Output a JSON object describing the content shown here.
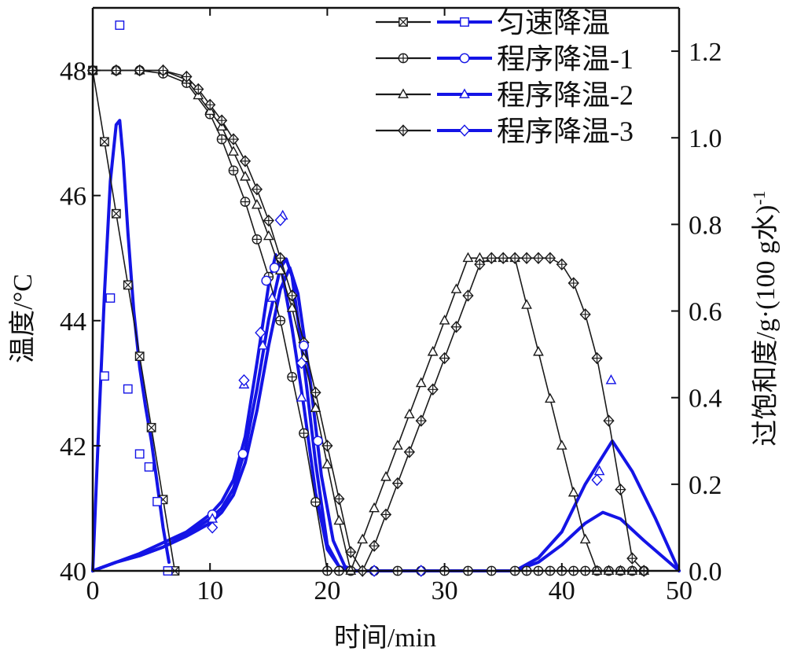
{
  "chart_data": {
    "type": "line",
    "xlabel": "时间/min",
    "ylabel_left": "温度/°C",
    "ylabel_right_main": "过饱和度/g·(100 g水)",
    "ylabel_right_sup": "-1",
    "xlim": [
      0,
      50
    ],
    "ylim_left": [
      40,
      49
    ],
    "ylim_right": [
      0,
      1.3
    ],
    "xticks": [
      0,
      10,
      20,
      30,
      40,
      50
    ],
    "yticks_left": [
      40,
      42,
      44,
      46,
      48
    ],
    "yticks_right": [
      0.0,
      0.2,
      0.4,
      0.6,
      0.8,
      1.0,
      1.2
    ],
    "yticks_right_labels": [
      "0.0",
      "0.2",
      "0.4",
      "0.6",
      "0.8",
      "1.0",
      "1.2"
    ],
    "grid": false,
    "legend_position": "top-right",
    "legend": [
      "匀速降温",
      "程序降温-1",
      "程序降温-2",
      "程序降温-3"
    ],
    "colors": {
      "temperature": "#1a1a1a",
      "supersaturation": "#1414e6"
    },
    "temperature_series": [
      {
        "name": "匀速降温",
        "marker": "square-x",
        "x": [
          0,
          1,
          2,
          3,
          4,
          5,
          6,
          7
        ],
        "y": [
          48,
          46.86,
          45.71,
          44.57,
          43.43,
          42.29,
          41.14,
          40
        ]
      },
      {
        "name": "程序降温-1",
        "marker": "circle-plus",
        "x": [
          0,
          2,
          4,
          6,
          8,
          10,
          11,
          12,
          13,
          14,
          15,
          16,
          17,
          18,
          19,
          20,
          21,
          22,
          24,
          26,
          28,
          30,
          32,
          34,
          36,
          37,
          38,
          39,
          40,
          41,
          42,
          43,
          44,
          45,
          46,
          47
        ],
        "y": [
          48,
          48,
          48,
          47.95,
          47.8,
          47.3,
          46.9,
          46.4,
          45.9,
          45.3,
          44.7,
          44.0,
          43.1,
          42.2,
          41.1,
          40,
          40,
          40,
          40,
          40,
          40,
          40,
          40,
          40,
          40,
          40,
          40,
          40,
          40,
          40,
          40,
          40,
          40,
          40,
          40,
          40
        ]
      },
      {
        "name": "程序降温-2",
        "marker": "triangle",
        "x": [
          0,
          2,
          4,
          6,
          8,
          9,
          10,
          11,
          12,
          13,
          14,
          15,
          16,
          17,
          18,
          19,
          20,
          21,
          22,
          23,
          24,
          25,
          26,
          27,
          28,
          29,
          30,
          31,
          32,
          33,
          34,
          35,
          36,
          37,
          38,
          39,
          40,
          41,
          42,
          43,
          44,
          45,
          46,
          47
        ],
        "y": [
          48,
          48,
          48,
          48,
          47.85,
          47.6,
          47.35,
          47.1,
          46.7,
          46.3,
          45.85,
          45.35,
          44.8,
          44.2,
          43.4,
          42.6,
          41.7,
          40.8,
          40,
          40.5,
          41,
          41.5,
          42,
          42.5,
          43,
          43.5,
          44,
          44.5,
          45,
          45,
          45,
          45,
          45,
          44.25,
          43.5,
          42.75,
          42,
          41.25,
          40.5,
          40,
          40,
          40,
          40,
          40
        ]
      },
      {
        "name": "程序降温-3",
        "marker": "diamond-plus",
        "x": [
          0,
          2,
          4,
          6,
          8,
          9,
          10,
          11,
          12,
          13,
          14,
          15,
          16,
          17,
          18,
          19,
          20,
          21,
          22,
          23,
          24,
          25,
          26,
          27,
          28,
          29,
          30,
          31,
          32,
          33,
          34,
          35,
          36,
          37,
          38,
          39,
          40,
          41,
          42,
          43,
          44,
          45,
          46,
          47
        ],
        "y": [
          48,
          48,
          48,
          48,
          47.9,
          47.7,
          47.45,
          47.2,
          46.9,
          46.55,
          46.1,
          45.6,
          45.0,
          44.4,
          43.65,
          42.85,
          42.0,
          41.15,
          40.3,
          40,
          40.4,
          40.9,
          41.4,
          41.9,
          42.4,
          42.9,
          43.4,
          43.9,
          44.4,
          44.9,
          45,
          45,
          45,
          45,
          45,
          45,
          44.9,
          44.6,
          44.1,
          43.4,
          42.4,
          41.3,
          40.2,
          40
        ]
      }
    ],
    "supersaturation_curves": [
      {
        "name": "匀速降温",
        "x": [
          0,
          0.5,
          1,
          1.5,
          2,
          2.3,
          2.6,
          3,
          3.5,
          4,
          4.5,
          5,
          5.5,
          6,
          6.5
        ],
        "y": [
          0.0,
          0.33,
          0.64,
          0.9,
          1.03,
          1.04,
          0.95,
          0.78,
          0.6,
          0.47,
          0.38,
          0.3,
          0.2,
          0.1,
          0.02
        ]
      },
      {
        "name": "程序降温-1",
        "x": [
          0,
          2,
          4,
          6,
          8,
          10,
          11,
          12,
          13,
          14,
          15,
          15.6,
          16,
          17,
          18,
          19,
          20,
          21,
          22
        ],
        "y": [
          0.0,
          0.02,
          0.04,
          0.065,
          0.09,
          0.13,
          0.16,
          0.21,
          0.31,
          0.48,
          0.66,
          0.73,
          0.71,
          0.56,
          0.38,
          0.18,
          0.05,
          0.01,
          0.0
        ]
      },
      {
        "name": "程序降温-2",
        "x": [
          0,
          2,
          4,
          6,
          8,
          10,
          11,
          12,
          13,
          14,
          15,
          16,
          16.5,
          17,
          18,
          19,
          20,
          21,
          22,
          36,
          38,
          40,
          42,
          43.5,
          45,
          47,
          50
        ],
        "y": [
          0.0,
          0.02,
          0.035,
          0.055,
          0.085,
          0.12,
          0.145,
          0.19,
          0.28,
          0.42,
          0.58,
          0.7,
          0.72,
          0.68,
          0.48,
          0.25,
          0.06,
          0.01,
          0.0,
          0.0,
          0.02,
          0.06,
          0.11,
          0.135,
          0.12,
          0.07,
          0.0
        ]
      },
      {
        "name": "程序降温-3",
        "x": [
          0,
          2,
          4,
          6,
          8,
          10,
          11,
          12,
          13,
          14,
          15,
          16,
          16.8,
          17.5,
          18.5,
          19.5,
          20.5,
          21.5,
          22.5,
          36,
          38,
          40,
          42,
          44.3,
          46,
          48,
          50
        ],
        "y": [
          0.0,
          0.02,
          0.035,
          0.055,
          0.08,
          0.11,
          0.135,
          0.175,
          0.25,
          0.37,
          0.52,
          0.65,
          0.7,
          0.64,
          0.45,
          0.22,
          0.07,
          0.01,
          0.0,
          0.0,
          0.03,
          0.09,
          0.2,
          0.3,
          0.23,
          0.12,
          0.0
        ]
      }
    ],
    "supersaturation_points": [
      {
        "name": "匀速降温",
        "marker": "square",
        "x": [
          2.3,
          1.0,
          1.5,
          3.0,
          4.0,
          4.8,
          5.5,
          6.4
        ],
        "y": [
          1.26,
          0.45,
          0.63,
          0.42,
          0.27,
          0.24,
          0.16,
          0.0
        ]
      },
      {
        "name": "程序降温-1",
        "marker": "circle",
        "x": [
          10.2,
          12.8,
          14.8,
          15.5,
          18.0,
          19.2
        ],
        "y": [
          0.13,
          0.27,
          0.67,
          0.7,
          0.52,
          0.3
        ]
      },
      {
        "name": "程序降温-2",
        "marker": "triangle",
        "x": [
          10.2,
          12.9,
          14.5,
          15.3,
          16.2,
          17.8,
          43.2,
          44.2
        ],
        "y": [
          0.12,
          0.43,
          0.52,
          0.63,
          0.82,
          0.4,
          0.23,
          0.44
        ]
      },
      {
        "name": "程序降温-3",
        "marker": "diamond",
        "x": [
          10.2,
          12.9,
          14.3,
          16.0,
          17.8,
          24.0,
          28.0,
          43.0
        ],
        "y": [
          0.1,
          0.44,
          0.55,
          0.81,
          0.48,
          0.0,
          0.0,
          0.21
        ]
      }
    ]
  }
}
